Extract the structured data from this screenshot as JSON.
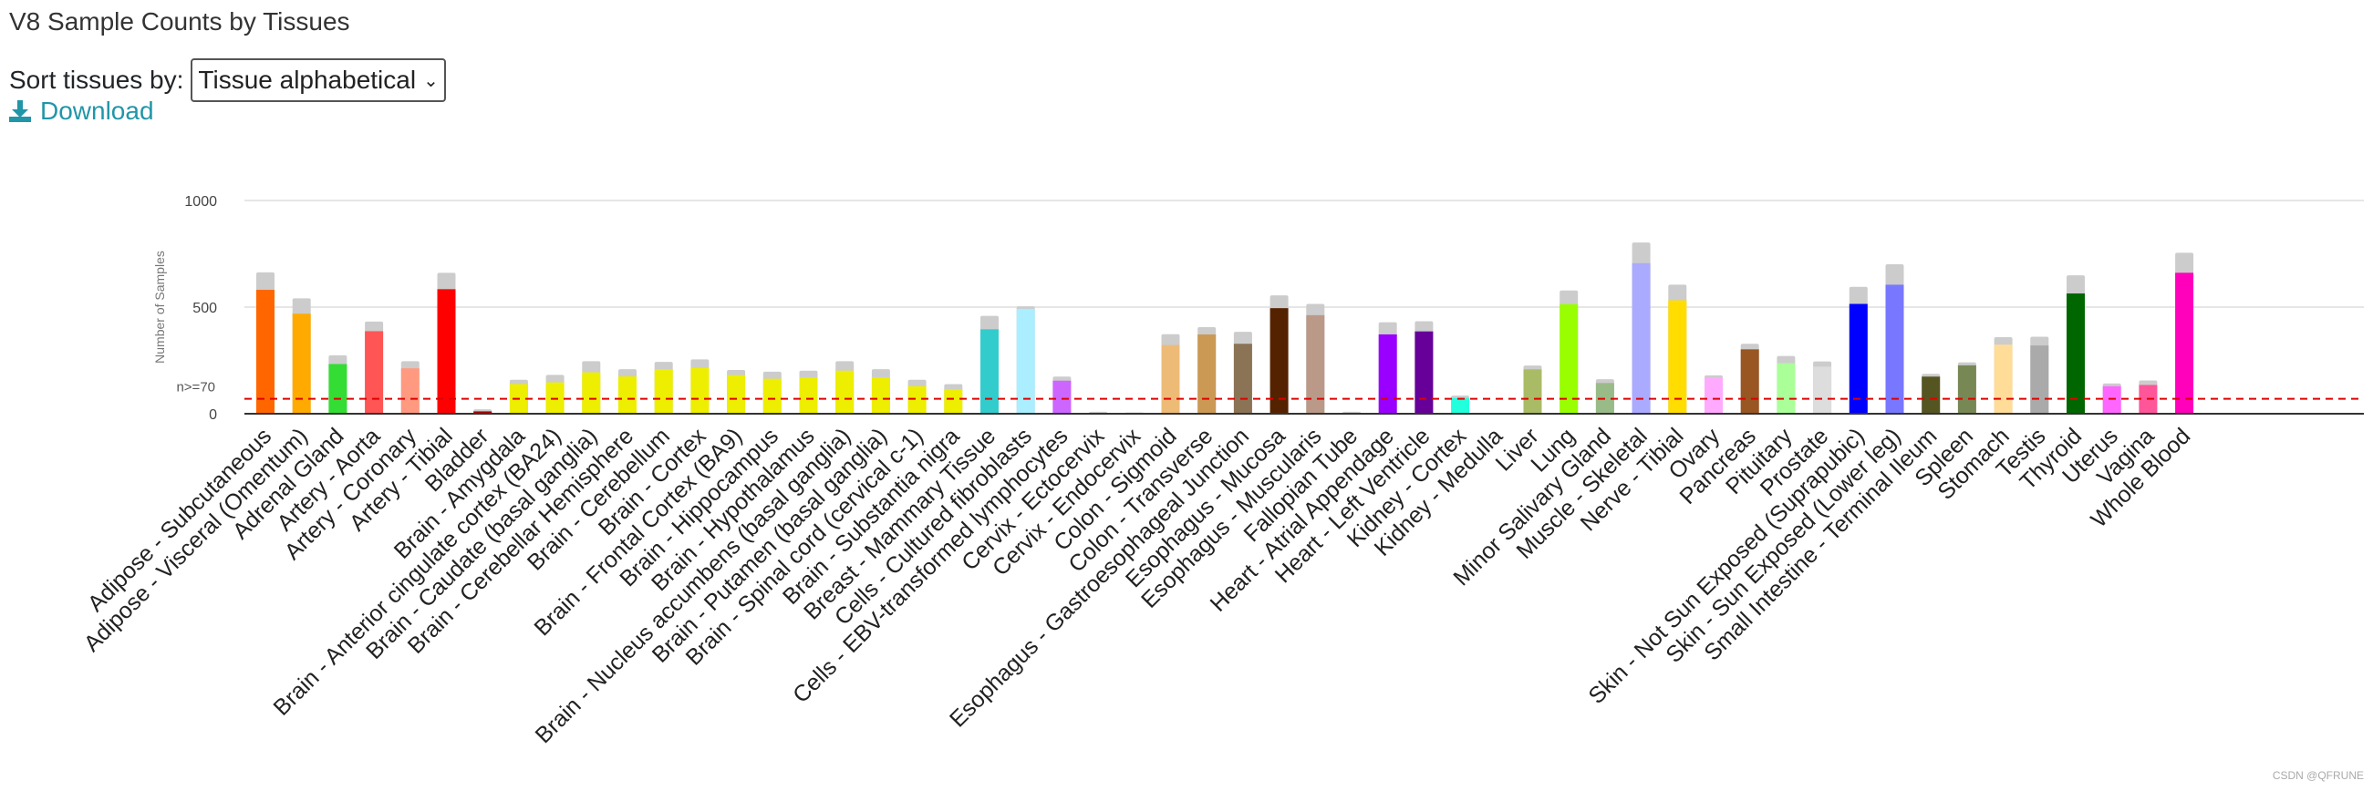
{
  "header": {
    "title": "V8 Sample Counts by Tissues",
    "sort_label": "Sort tissues by:",
    "sort_value": "Tissue alphabetical",
    "download_label": "Download"
  },
  "icons": {
    "download": "download-icon",
    "dropdown": "chevron-down-icon"
  },
  "watermark": "CSDN @QFRUNE",
  "chart_data": {
    "type": "bar",
    "title": "",
    "xlabel": "",
    "ylabel": "Number of Samples",
    "ylim": [
      0,
      1000
    ],
    "yticks": [
      0,
      500,
      1000
    ],
    "threshold": {
      "value": 70,
      "label": "n>=70",
      "color": "#e00000"
    },
    "grid": true,
    "series": [
      {
        "name": "",
        "values": [
          581,
          469,
          233,
          387,
          213,
          584,
          11,
          139,
          147,
          194,
          175,
          209,
          215,
          181,
          164,
          170,
          202,
          170,
          129,
          114,
          396,
          492,
          155,
          0,
          0,
          322,
          372,
          328,
          495,
          462,
          0,
          372,
          386,
          73,
          0,
          208,
          514,
          144,
          706,
          532,
          167,
          302,
          237,
          221,
          515,
          605,
          174,
          227,
          324,
          320,
          564,
          129,
          135,
          661
        ]
      },
      {
        "name": "",
        "values": [
          663,
          541,
          274,
          432,
          246,
          661,
          21,
          159,
          182,
          246,
          209,
          243,
          255,
          205,
          197,
          202,
          246,
          209,
          159,
          139,
          459,
          504,
          174,
          9,
          6,
          373,
          406,
          384,
          555,
          515,
          9,
          429,
          434,
          85,
          4,
          226,
          578,
          162,
          803,
          605,
          180,
          328,
          271,
          245,
          595,
          701,
          187,
          241,
          359,
          361,
          649,
          142,
          156,
          755
        ]
      }
    ],
    "categories": [
      "Adipose - Subcutaneous",
      "Adipose - Visceral (Omentum)",
      "Adrenal Gland",
      "Artery - Aorta",
      "Artery - Coronary",
      "Artery - Tibial",
      "Bladder",
      "Brain - Amygdala",
      "Brain - Anterior cingulate cortex (BA24)",
      "Brain - Caudate (basal ganglia)",
      "Brain - Cerebellar Hemisphere",
      "Brain - Cerebellum",
      "Brain - Cortex",
      "Brain - Frontal Cortex (BA9)",
      "Brain - Hippocampus",
      "Brain - Hypothalamus",
      "Brain - Nucleus accumbens (basal ganglia)",
      "Brain - Putamen (basal ganglia)",
      "Brain - Spinal cord (cervical c-1)",
      "Brain - Substantia nigra",
      "Breast - Mammary Tissue",
      "Cells - Cultured fibroblasts",
      "Cells - EBV-transformed lymphocytes",
      "Cervix - Ectocervix",
      "Cervix - Endocervix",
      "Colon - Sigmoid",
      "Colon - Transverse",
      "Esophagus - Gastroesophageal Junction",
      "Esophagus - Mucosa",
      "Esophagus - Muscularis",
      "Fallopian Tube",
      "Heart - Atrial Appendage",
      "Heart - Left Ventricle",
      "Kidney - Cortex",
      "Kidney - Medulla",
      "Liver",
      "Lung",
      "Minor Salivary Gland",
      "Muscle - Skeletal",
      "Nerve - Tibial",
      "Ovary",
      "Pancreas",
      "Pituitary",
      "Prostate",
      "Skin - Not Sun Exposed (Suprapubic)",
      "Skin - Sun Exposed (Lower leg)",
      "Small Intestine - Terminal Ileum",
      "Spleen",
      "Stomach",
      "Testis",
      "Thyroid",
      "Uterus",
      "Vagina",
      "Whole Blood"
    ],
    "colors": [
      "#ff6600",
      "#ffaa00",
      "#33dd33",
      "#ff5555",
      "#ff9980",
      "#ff0000",
      "#aa0000",
      "#eeee00",
      "#eeee00",
      "#eeee00",
      "#eeee00",
      "#eeee00",
      "#eeee00",
      "#eeee00",
      "#eeee00",
      "#eeee00",
      "#eeee00",
      "#eeee00",
      "#eeee00",
      "#eeee00",
      "#33cccc",
      "#aaeeff",
      "#cc66ff",
      "#ffcccc",
      "#ccaadd",
      "#eebb77",
      "#cc9955",
      "#8b7355",
      "#552200",
      "#bb9988",
      "#ffcccc",
      "#9900ff",
      "#660099",
      "#22ffdd",
      "#33ccbb",
      "#aabb66",
      "#99ff00",
      "#99bb88",
      "#aaaaff",
      "#ffdd00",
      "#ffaaff",
      "#995522",
      "#aaff99",
      "#dddddd",
      "#0000ff",
      "#7777ff",
      "#555522",
      "#778855",
      "#ffdd99",
      "#aaaaaa",
      "#006600",
      "#ff66ff",
      "#ff5599",
      "#ff00bb"
    ],
    "bar_background_color": "#cccccc",
    "gridline_color": "#dddddd"
  }
}
